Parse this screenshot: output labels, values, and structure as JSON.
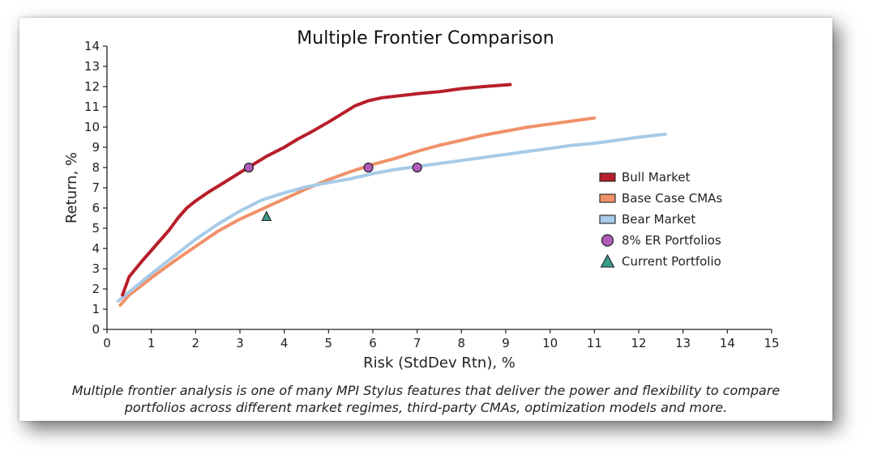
{
  "chart_data": {
    "type": "line",
    "title": "Multiple Frontier Comparison",
    "xlabel": "Risk (StdDev Rtn), %",
    "ylabel": "Return, %",
    "xlim": [
      0,
      15
    ],
    "ylim": [
      0,
      14
    ],
    "xticks": [
      "0",
      "1",
      "2",
      "3",
      "4",
      "5",
      "6",
      "7",
      "8",
      "9",
      "10",
      "11",
      "12",
      "13",
      "14",
      "15"
    ],
    "yticks": [
      "0",
      "1",
      "2",
      "3",
      "4",
      "5",
      "6",
      "7",
      "8",
      "9",
      "10",
      "11",
      "12",
      "13",
      "14"
    ],
    "grid": false,
    "legend_position": "right",
    "series": [
      {
        "name": "Bull Market",
        "color": "#b81e2b",
        "x": [
          0.35,
          0.5,
          0.8,
          1.0,
          1.4,
          1.6,
          1.8,
          2.0,
          2.3,
          2.6,
          3.0,
          3.3,
          3.6,
          4.0,
          4.3,
          4.6,
          5.0,
          5.3,
          5.6,
          5.9,
          6.2,
          6.6,
          7.0,
          7.5,
          8.0,
          8.5,
          9.1
        ],
        "y": [
          1.7,
          2.6,
          3.4,
          3.9,
          4.9,
          5.5,
          6.0,
          6.35,
          6.8,
          7.2,
          7.75,
          8.15,
          8.55,
          9.0,
          9.4,
          9.75,
          10.25,
          10.65,
          11.05,
          11.3,
          11.45,
          11.55,
          11.65,
          11.75,
          11.9,
          12.0,
          12.1
        ]
      },
      {
        "name": "Base Case CMAs",
        "color": "#f0916a",
        "x": [
          0.3,
          0.5,
          0.8,
          1.0,
          1.5,
          2.0,
          2.5,
          3.0,
          3.5,
          4.0,
          4.5,
          5.0,
          5.5,
          6.0,
          6.5,
          7.0,
          7.5,
          8.0,
          8.5,
          9.0,
          9.5,
          10.0,
          10.5,
          11.0
        ],
        "y": [
          1.2,
          1.7,
          2.2,
          2.55,
          3.35,
          4.1,
          4.85,
          5.45,
          5.95,
          6.45,
          6.95,
          7.4,
          7.8,
          8.15,
          8.45,
          8.8,
          9.1,
          9.35,
          9.6,
          9.8,
          10.0,
          10.15,
          10.3,
          10.45
        ]
      },
      {
        "name": "Bear Market",
        "color": "#a7cbe8",
        "x": [
          0.25,
          0.5,
          1.0,
          1.5,
          2.0,
          2.5,
          3.0,
          3.5,
          4.0,
          4.5,
          5.0,
          5.5,
          6.0,
          6.5,
          7.0,
          7.5,
          8.0,
          8.5,
          9.0,
          9.5,
          10.0,
          10.5,
          11.0,
          11.5,
          12.0,
          12.6
        ],
        "y": [
          1.4,
          1.85,
          2.75,
          3.6,
          4.45,
          5.2,
          5.85,
          6.4,
          6.75,
          7.05,
          7.25,
          7.45,
          7.7,
          7.9,
          8.05,
          8.2,
          8.35,
          8.5,
          8.65,
          8.8,
          8.95,
          9.1,
          9.2,
          9.35,
          9.5,
          9.65
        ]
      }
    ],
    "markers": [
      {
        "name": "8% ER Portfolios",
        "shape": "circle",
        "color": "#b05bb8",
        "points": [
          [
            3.2,
            8.0
          ],
          [
            5.9,
            8.0
          ],
          [
            7.0,
            8.0
          ]
        ]
      },
      {
        "name": "Current Portfolio",
        "shape": "triangle",
        "color": "#3a9a8a",
        "points": [
          [
            3.6,
            5.6
          ]
        ]
      }
    ]
  },
  "caption": {
    "line1": "Multiple frontier analysis is one of many MPI Stylus features that deliver the power and flexibility to compare",
    "line2": "portfolios across different market regimes, third-party CMAs, optimization models and more."
  }
}
